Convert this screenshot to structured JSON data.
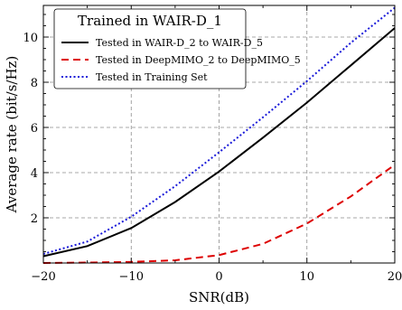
{
  "chart_data": {
    "type": "line",
    "xlabel": "SNR(dB)",
    "ylabel": "Average rate (bit/s/Hz)",
    "xlim": [
      -20,
      20
    ],
    "ylim": [
      0,
      11.4
    ],
    "x_ticks": [
      -20,
      -10,
      0,
      10,
      20
    ],
    "y_ticks": [
      2,
      4,
      6,
      8,
      10
    ],
    "x_tick_labels": [
      "−20",
      "−10",
      "0",
      "10",
      "20"
    ],
    "y_tick_labels": [
      "2",
      "4",
      "6",
      "8",
      "10"
    ],
    "grid": true,
    "legend": {
      "title": "Trained in WAIR-D_1",
      "position": "top-left"
    },
    "x": [
      -20,
      -15,
      -10,
      -5,
      0,
      5,
      10,
      15,
      20
    ],
    "series": [
      {
        "name": "Tested in WAIR-D_2 to WAIR-D_5",
        "color": "#000000",
        "dash": "solid",
        "values": [
          0.3,
          0.75,
          1.55,
          2.7,
          4.05,
          5.55,
          7.1,
          8.75,
          10.4
        ]
      },
      {
        "name": "Tested in DeepMIMO_2 to DeepMIMO_5",
        "color": "#dd0000",
        "dash": "dashed",
        "values": [
          0.0,
          0.02,
          0.05,
          0.12,
          0.35,
          0.85,
          1.75,
          2.95,
          4.35
        ]
      },
      {
        "name": "Tested in Training Set",
        "color": "#1a1ad9",
        "dash": "dotted",
        "values": [
          0.4,
          0.95,
          2.05,
          3.4,
          4.9,
          6.45,
          8.05,
          9.75,
          11.3
        ]
      }
    ]
  }
}
